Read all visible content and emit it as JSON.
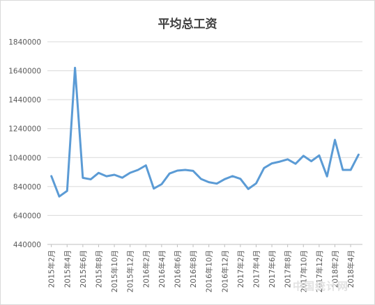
{
  "chart_data": {
    "type": "line",
    "title": "平均总工资",
    "xlabel": "",
    "ylabel": "",
    "ylim": [
      440000,
      1840000
    ],
    "yticks": [
      "1840000",
      "1640000",
      "1440000",
      "1240000",
      "1040000",
      "840000",
      "640000",
      "440000"
    ],
    "yticks_values": [
      1840000,
      1640000,
      1440000,
      1240000,
      1040000,
      840000,
      640000,
      440000
    ],
    "x_labels": [
      "2015年2月",
      "2015年4月",
      "2015年6月",
      "2015年8月",
      "2015年10月",
      "2015年12月",
      "2016年2月",
      "2016年4月",
      "2016年6月",
      "2016年8月",
      "2016年10月",
      "2016年12月",
      "2017年2月",
      "2017年4月",
      "2017年6月",
      "2017年8月",
      "2017年10月",
      "2017年12月",
      "2018年2月",
      "2018年4月"
    ],
    "x": [
      "2015-02",
      "2015-03",
      "2015-04",
      "2015-05",
      "2015-06",
      "2015-07",
      "2015-08",
      "2015-09",
      "2015-10",
      "2015-11",
      "2015-12",
      "2016-01",
      "2016-02",
      "2016-03",
      "2016-04",
      "2016-05",
      "2016-06",
      "2016-07",
      "2016-08",
      "2016-09",
      "2016-10",
      "2016-11",
      "2016-12",
      "2017-01",
      "2017-02",
      "2017-03",
      "2017-04",
      "2017-05",
      "2017-06",
      "2017-07",
      "2017-08",
      "2017-09",
      "2017-10",
      "2017-11",
      "2017-12",
      "2018-01",
      "2018-02",
      "2018-03",
      "2018-04",
      "2018-05"
    ],
    "series": [
      {
        "values": [
          912000,
          771000,
          810000,
          1660000,
          900000,
          890000,
          934000,
          911000,
          921000,
          901000,
          935000,
          955000,
          986000,
          826000,
          856000,
          930000,
          950000,
          955000,
          948000,
          892000,
          870000,
          860000,
          891000,
          912000,
          893000,
          823000,
          862000,
          968000,
          1000000,
          1012000,
          1028000,
          997000,
          1052000,
          1015000,
          1055000,
          910000,
          1162000,
          955000,
          955000,
          1060000
        ],
        "color": "#5b9bd5"
      }
    ],
    "grid": true,
    "legend": "none"
  },
  "watermark": "中国统计网"
}
